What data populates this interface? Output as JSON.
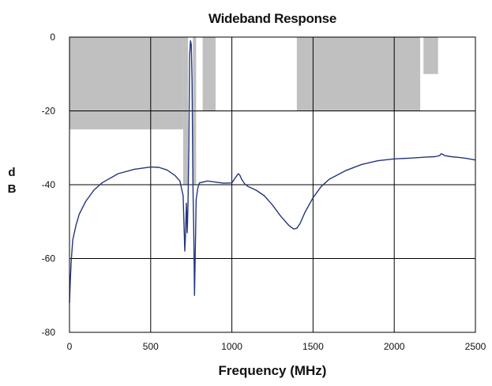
{
  "chart_data": {
    "type": "line",
    "title": "Wideband Response",
    "xlabel": "Frequency (MHz)",
    "ylabel": "dB",
    "xlim": [
      0,
      2500
    ],
    "ylim": [
      -80,
      0
    ],
    "xticks": [
      0,
      500,
      1000,
      1500,
      2000,
      2500
    ],
    "yticks": [
      0,
      -20,
      -40,
      -60,
      -80
    ],
    "grid": true,
    "colors": {
      "line": "#24367a",
      "mask": "#c0c0c0",
      "grid": "#000000"
    },
    "mask_regions": [
      {
        "x": [
          0,
          700
        ],
        "y": [
          0,
          -25
        ]
      },
      {
        "x": [
          700,
          730
        ],
        "y": [
          0,
          -40
        ]
      },
      {
        "x": [
          760,
          780
        ],
        "y": [
          0,
          -40
        ]
      },
      {
        "x": [
          820,
          900
        ],
        "y": [
          0,
          -20
        ]
      },
      {
        "x": [
          1400,
          2160
        ],
        "y": [
          0,
          -20
        ]
      },
      {
        "x": [
          2180,
          2270
        ],
        "y": [
          -10,
          0
        ]
      }
    ],
    "series": [
      {
        "x": [
          0,
          5,
          10,
          20,
          40,
          60,
          100,
          150,
          200,
          300,
          400,
          500,
          550,
          600,
          650,
          680,
          700,
          710,
          715,
          720,
          725,
          730,
          735,
          740,
          745,
          750,
          755,
          760,
          765,
          770,
          775,
          780,
          790,
          800,
          850,
          900,
          950,
          1000,
          1020,
          1040,
          1050,
          1060,
          1080,
          1100,
          1150,
          1200,
          1250,
          1300,
          1350,
          1380,
          1400,
          1420,
          1450,
          1500,
          1550,
          1600,
          1700,
          1800,
          1900,
          2000,
          2100,
          2200,
          2250,
          2280,
          2290,
          2300,
          2310,
          2350,
          2400,
          2450,
          2500
        ],
        "y": [
          -72,
          -66,
          -61,
          -55,
          -51,
          -48,
          -44.5,
          -41.5,
          -39.5,
          -37,
          -35.8,
          -35.2,
          -35.3,
          -36,
          -37.5,
          -39,
          -43,
          -58,
          -53,
          -45,
          -53,
          -45,
          -30,
          -5,
          -1,
          -2,
          -12,
          -40,
          -52,
          -70,
          -58,
          -44,
          -41,
          -39.5,
          -39,
          -39.3,
          -39.6,
          -39.5,
          -38.2,
          -37,
          -37.5,
          -38.5,
          -39.8,
          -40.5,
          -41.5,
          -43,
          -45.5,
          -48.5,
          -51,
          -52,
          -51.8,
          -50.5,
          -47.5,
          -43.5,
          -40.5,
          -38.5,
          -36.2,
          -34.5,
          -33.5,
          -33,
          -32.8,
          -32.5,
          -32.4,
          -32.1,
          -31.6,
          -31.8,
          -32.1,
          -32.4,
          -32.6,
          -32.9,
          -33.3
        ]
      }
    ]
  }
}
